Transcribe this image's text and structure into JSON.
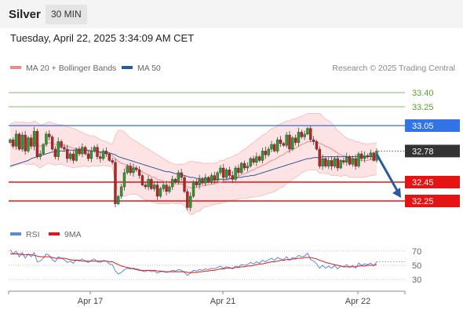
{
  "header": {
    "instrument": "Silver",
    "timeframe": "30 MIN",
    "timestamp": "Tuesday, April 22, 2025 3:34:09 AM CET"
  },
  "legend": {
    "ma20_label": "MA 20 + Bollinger Bands",
    "ma50_label": "MA 50",
    "copyright": "Research © 2025 Trading Central",
    "ma20_color": "#ef8a8a",
    "ma50_color": "#2d5a9b"
  },
  "rsi_legend": {
    "rsi_label": "RSI",
    "ma_label": "9MA",
    "rsi_color": "#5b8ad8",
    "ma_color": "#d81c1c"
  },
  "chart_data": {
    "type": "candlestick",
    "y_range": [
      32.05,
      33.55
    ],
    "x_tick_labels": [
      "Apr 17",
      "Apr 21",
      "Apr 22"
    ],
    "levels": [
      {
        "label": "33.40",
        "value": 33.4,
        "kind": "target",
        "color": "#5aa02c"
      },
      {
        "label": "33.25",
        "value": 33.25,
        "kind": "target",
        "color": "#5aa02c"
      },
      {
        "label": "33.05",
        "value": 33.05,
        "kind": "resistance",
        "color": "#2f6fe0"
      },
      {
        "label": "32.78",
        "value": 32.78,
        "kind": "last",
        "color": "#333333"
      },
      {
        "label": "32.45",
        "value": 32.45,
        "kind": "support",
        "color": "#e01515"
      },
      {
        "label": "32.25",
        "value": 32.25,
        "kind": "support",
        "color": "#e01515"
      }
    ],
    "forecast_arrow": {
      "from": 32.78,
      "to": 32.25,
      "color": "#2d5a9b"
    },
    "close": [
      32.9,
      32.83,
      32.96,
      32.8,
      32.95,
      32.78,
      32.92,
      32.83,
      32.99,
      32.72,
      32.75,
      32.85,
      32.96,
      32.93,
      32.8,
      32.72,
      32.88,
      32.82,
      32.8,
      32.7,
      32.75,
      32.68,
      32.8,
      32.75,
      32.82,
      32.75,
      32.7,
      32.78,
      32.82,
      32.72,
      32.7,
      32.78,
      32.75,
      32.68,
      32.66,
      32.22,
      32.3,
      32.4,
      32.55,
      32.62,
      32.55,
      32.6,
      32.58,
      32.52,
      32.42,
      32.4,
      32.48,
      32.38,
      32.42,
      32.3,
      32.38,
      32.42,
      32.35,
      32.4,
      32.48,
      32.45,
      32.55,
      32.5,
      32.35,
      32.18,
      32.3,
      32.45,
      32.42,
      32.48,
      32.44,
      32.5,
      32.45,
      32.52,
      32.47,
      32.55,
      32.6,
      32.5,
      32.58,
      32.52,
      32.48,
      32.6,
      32.55,
      32.65,
      32.6,
      32.62,
      32.7,
      32.66,
      32.72,
      32.68,
      32.78,
      32.74,
      32.8,
      32.85,
      32.78,
      32.9,
      32.86,
      32.84,
      32.95,
      32.8,
      32.92,
      32.87,
      32.98,
      32.93,
      32.96,
      33.02,
      32.9,
      32.88,
      32.8,
      32.62,
      32.7,
      32.62,
      32.68,
      32.62,
      32.7,
      32.6,
      32.68,
      32.66,
      32.72,
      32.64,
      32.7,
      32.62,
      32.75,
      32.7,
      32.73,
      32.72,
      32.76,
      32.68,
      32.78
    ],
    "ma20": [
      32.84,
      32.85,
      32.86,
      32.86,
      32.87,
      32.86,
      32.86,
      32.86,
      32.87,
      32.85,
      32.83,
      32.84,
      32.86,
      32.87,
      32.86,
      32.85,
      32.85,
      32.85,
      32.84,
      32.83,
      32.82,
      32.81,
      32.81,
      32.8,
      32.8,
      32.79,
      32.78,
      32.78,
      32.78,
      32.77,
      32.76,
      32.76,
      32.75,
      32.74,
      32.73,
      32.7,
      32.67,
      32.65,
      32.64,
      32.63,
      32.62,
      32.61,
      32.6,
      32.58,
      32.56,
      32.54,
      32.53,
      32.51,
      32.5,
      32.48,
      32.47,
      32.46,
      32.45,
      32.44,
      32.44,
      32.43,
      32.43,
      32.43,
      32.42,
      32.4,
      32.39,
      32.39,
      32.4,
      32.4,
      32.41,
      32.42,
      32.42,
      32.43,
      32.43,
      32.44,
      32.45,
      32.46,
      32.47,
      32.48,
      32.49,
      32.5,
      32.51,
      32.53,
      32.54,
      32.55,
      32.57,
      32.58,
      32.6,
      32.61,
      32.63,
      32.64,
      32.66,
      32.68,
      32.69,
      32.71,
      32.73,
      32.74,
      32.77,
      32.78,
      32.8,
      32.81,
      32.83,
      32.85,
      32.86,
      32.88,
      32.88,
      32.88,
      32.88,
      32.86,
      32.85,
      32.83,
      32.82,
      32.8,
      32.78,
      32.76,
      32.74,
      32.73,
      32.72,
      32.7,
      32.7,
      32.69,
      32.69,
      32.68,
      32.68,
      32.68,
      32.69,
      32.69,
      32.7
    ],
    "bb_upper": [
      33.07,
      33.08,
      33.09,
      33.08,
      33.09,
      33.08,
      33.08,
      33.08,
      33.1,
      33.08,
      33.06,
      33.06,
      33.08,
      33.09,
      33.08,
      33.07,
      33.06,
      33.06,
      33.05,
      33.04,
      33.03,
      33.02,
      33.01,
      32.99,
      32.98,
      32.96,
      32.95,
      32.94,
      32.94,
      32.92,
      32.9,
      32.89,
      32.88,
      32.86,
      32.85,
      32.95,
      33.0,
      33.0,
      32.98,
      32.95,
      32.92,
      32.9,
      32.88,
      32.86,
      32.84,
      32.82,
      32.8,
      32.78,
      32.76,
      32.74,
      32.72,
      32.7,
      32.68,
      32.66,
      32.65,
      32.64,
      32.64,
      32.64,
      32.64,
      32.66,
      32.67,
      32.67,
      32.66,
      32.66,
      32.65,
      32.65,
      32.65,
      32.65,
      32.65,
      32.66,
      32.68,
      32.68,
      32.7,
      32.71,
      32.72,
      32.74,
      32.75,
      32.78,
      32.8,
      32.82,
      32.85,
      32.87,
      32.9,
      32.92,
      32.95,
      32.96,
      32.99,
      33.02,
      33.03,
      33.05,
      33.07,
      33.08,
      33.1,
      33.1,
      33.12,
      33.12,
      33.14,
      33.15,
      33.16,
      33.18,
      33.18,
      33.18,
      33.18,
      33.18,
      33.15,
      33.12,
      33.1,
      33.08,
      33.04,
      33.0,
      32.97,
      32.94,
      32.92,
      32.9,
      32.9,
      32.88,
      32.88,
      32.86,
      32.86,
      32.85,
      32.86,
      32.86,
      32.87
    ],
    "bb_lower": [
      32.61,
      32.62,
      32.63,
      32.64,
      32.65,
      32.64,
      32.64,
      32.64,
      32.64,
      32.62,
      32.6,
      32.62,
      32.64,
      32.65,
      32.64,
      32.63,
      32.64,
      32.64,
      32.63,
      32.62,
      32.61,
      32.6,
      32.61,
      32.61,
      32.62,
      32.62,
      32.61,
      32.62,
      32.62,
      32.62,
      32.62,
      32.63,
      32.62,
      32.62,
      32.61,
      32.45,
      32.34,
      32.3,
      32.3,
      32.31,
      32.32,
      32.32,
      32.32,
      32.3,
      32.28,
      32.26,
      32.26,
      32.24,
      32.24,
      32.22,
      32.22,
      32.22,
      32.22,
      32.22,
      32.23,
      32.22,
      32.22,
      32.22,
      32.2,
      32.14,
      32.11,
      32.11,
      32.14,
      32.14,
      32.17,
      32.19,
      32.19,
      32.21,
      32.21,
      32.22,
      32.22,
      32.24,
      32.24,
      32.25,
      32.26,
      32.26,
      32.27,
      32.28,
      32.28,
      32.28,
      32.29,
      32.29,
      32.3,
      32.3,
      32.31,
      32.32,
      32.33,
      32.34,
      32.35,
      32.37,
      32.39,
      32.4,
      32.44,
      32.46,
      32.48,
      32.5,
      32.52,
      32.55,
      32.56,
      32.58,
      32.58,
      32.58,
      32.58,
      32.54,
      32.55,
      32.54,
      32.54,
      32.52,
      32.52,
      32.52,
      32.51,
      32.52,
      32.52,
      32.5,
      32.5,
      32.5,
      32.5,
      32.5,
      32.5,
      32.51,
      32.52,
      32.52,
      32.53
    ],
    "ma50": [
      32.62,
      32.63,
      32.64,
      32.65,
      32.66,
      32.67,
      32.68,
      32.7,
      32.71,
      32.72,
      32.73,
      32.74,
      32.75,
      32.76,
      32.77,
      32.77,
      32.78,
      32.78,
      32.78,
      32.79,
      32.79,
      32.79,
      32.79,
      32.79,
      32.79,
      32.79,
      32.79,
      32.78,
      32.78,
      32.78,
      32.77,
      32.77,
      32.76,
      32.76,
      32.75,
      32.74,
      32.72,
      32.71,
      32.7,
      32.69,
      32.68,
      32.67,
      32.66,
      32.65,
      32.64,
      32.63,
      32.62,
      32.61,
      32.6,
      32.59,
      32.58,
      32.57,
      32.56,
      32.56,
      32.55,
      32.54,
      32.54,
      32.53,
      32.52,
      32.51,
      32.5,
      32.5,
      32.49,
      32.49,
      32.49,
      32.48,
      32.48,
      32.48,
      32.48,
      32.48,
      32.48,
      32.48,
      32.48,
      32.49,
      32.49,
      32.49,
      32.5,
      32.5,
      32.51,
      32.51,
      32.52,
      32.52,
      32.53,
      32.54,
      32.55,
      32.56,
      32.57,
      32.58,
      32.59,
      32.6,
      32.61,
      32.62,
      32.63,
      32.64,
      32.65,
      32.66,
      32.67,
      32.68,
      32.69,
      32.7,
      32.7,
      32.71,
      32.71,
      32.71,
      32.72,
      32.72,
      32.72,
      32.72,
      32.72,
      32.72,
      32.72,
      32.72,
      32.72,
      32.72,
      32.72,
      32.72,
      32.72,
      32.72,
      32.72,
      32.72,
      32.72,
      32.72,
      32.72
    ],
    "rsi": {
      "y_range": [
        18,
        82
      ],
      "levels": [
        70,
        50,
        30
      ],
      "rsi": [
        72,
        66,
        70,
        62,
        68,
        60,
        66,
        62,
        68,
        55,
        56,
        60,
        66,
        64,
        58,
        55,
        62,
        60,
        58,
        54,
        56,
        53,
        58,
        56,
        59,
        56,
        54,
        57,
        59,
        55,
        54,
        57,
        56,
        52,
        51,
        42,
        38,
        40,
        44,
        46,
        45,
        46,
        45,
        44,
        42,
        41,
        43,
        41,
        42,
        39,
        41,
        42,
        40,
        41,
        43,
        42,
        44,
        43,
        40,
        36,
        39,
        43,
        42,
        44,
        43,
        45,
        44,
        46,
        45,
        47,
        49,
        46,
        48,
        47,
        45,
        49,
        48,
        51,
        50,
        51,
        54,
        52,
        55,
        53,
        57,
        55,
        58,
        60,
        57,
        61,
        59,
        58,
        62,
        57,
        61,
        60,
        64,
        62,
        63,
        67,
        58,
        56,
        52,
        46,
        50,
        46,
        49,
        46,
        50,
        45,
        49,
        48,
        51,
        47,
        50,
        46,
        53,
        50,
        52,
        51,
        53,
        49,
        55
      ],
      "ma9": [
        66,
        66,
        66,
        66,
        65,
        65,
        65,
        65,
        64,
        63,
        62,
        62,
        62,
        62,
        61,
        60,
        60,
        60,
        60,
        59,
        58,
        57,
        57,
        57,
        56,
        56,
        56,
        56,
        56,
        56,
        56,
        56,
        56,
        55,
        55,
        53,
        51,
        49,
        48,
        47,
        46,
        45,
        44,
        43,
        43,
        43,
        43,
        43,
        43,
        42,
        42,
        41,
        41,
        41,
        41,
        41,
        41,
        41,
        41,
        40,
        40,
        40,
        40,
        41,
        41,
        42,
        42,
        43,
        43,
        44,
        45,
        45,
        46,
        46,
        46,
        47,
        47,
        48,
        48,
        49,
        49,
        50,
        51,
        52,
        52,
        53,
        54,
        55,
        55,
        56,
        57,
        57,
        58,
        58,
        59,
        59,
        60,
        60,
        61,
        61,
        61,
        60,
        59,
        57,
        56,
        54,
        53,
        52,
        51,
        50,
        49,
        48,
        48,
        48,
        48,
        48,
        49,
        49,
        49,
        50,
        50,
        50,
        51
      ]
    }
  }
}
